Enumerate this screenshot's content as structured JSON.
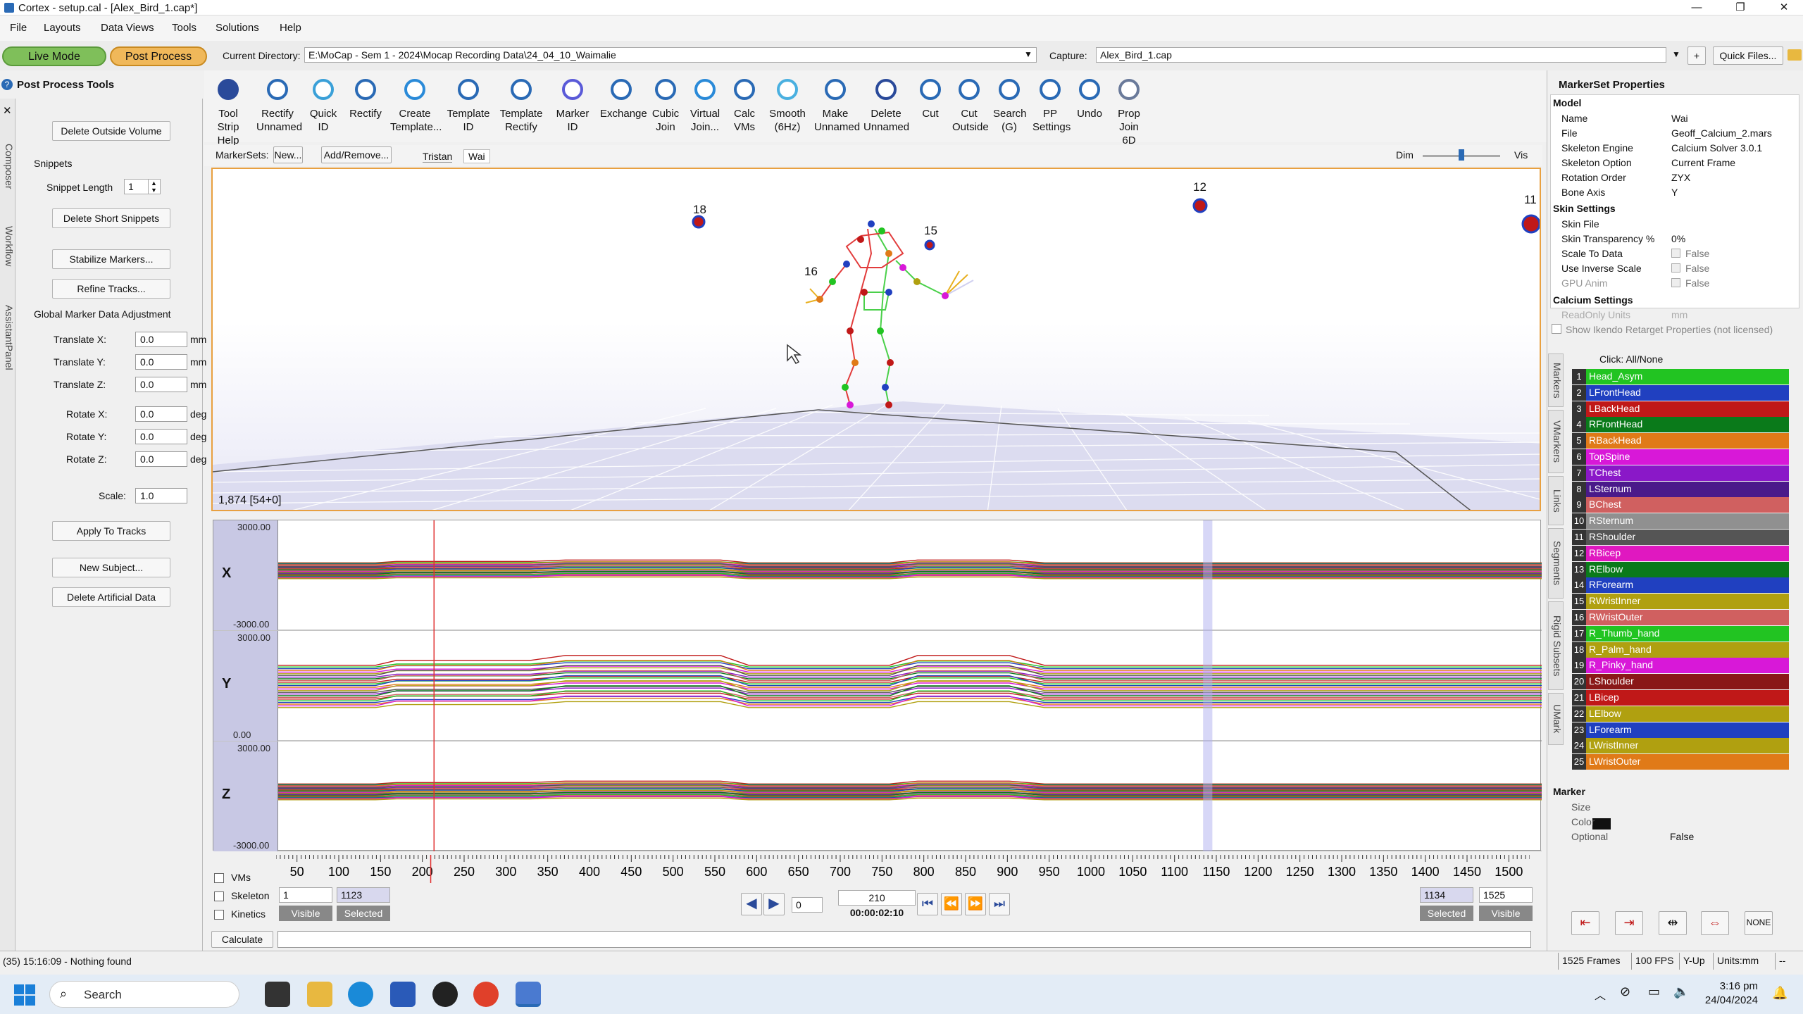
{
  "window": {
    "title": "Cortex - setup.cal - [Alex_Bird_1.cap*]",
    "min": "—",
    "max": "❐",
    "close": "✕"
  },
  "menu": [
    "File",
    "Layouts",
    "Data Views",
    "Tools",
    "Solutions",
    "Help"
  ],
  "modes": {
    "live": "Live Mode",
    "post": "Post Process"
  },
  "directory": {
    "label": "Current Directory:",
    "value": "E:\\MoCap - Sem 1 - 2024\\Mocap Recording Data\\24_04_10_Waimalie"
  },
  "capture": {
    "label": "Capture:",
    "value": "Alex_Bird_1.cap",
    "quick": "Quick Files..."
  },
  "left_panel": {
    "title": "Post Process Tools",
    "tabs": [
      "Composer",
      "Workflow",
      "AssistantPanel"
    ],
    "delete_outside": "Delete Outside Volume",
    "snippets_title": "Snippets",
    "snippet_length_label": "Snippet Length",
    "snippet_length": "1",
    "delete_short": "Delete Short Snippets",
    "stabilize": "Stabilize Markers...",
    "refine": "Refine Tracks...",
    "global_title": "Global Marker Data Adjustment",
    "adjust": [
      {
        "label": "Translate X:",
        "value": "0.0",
        "unit": "mm"
      },
      {
        "label": "Translate Y:",
        "value": "0.0",
        "unit": "mm"
      },
      {
        "label": "Translate Z:",
        "value": "0.0",
        "unit": "mm"
      },
      {
        "label": "Rotate X:",
        "value": "0.0",
        "unit": "deg"
      },
      {
        "label": "Rotate Y:",
        "value": "0.0",
        "unit": "deg"
      },
      {
        "label": "Rotate Z:",
        "value": "0.0",
        "unit": "deg"
      },
      {
        "label": "Scale:",
        "value": "1.0",
        "unit": ""
      }
    ],
    "apply": "Apply To Tracks",
    "new_subject": "New Subject...",
    "delete_artificial": "Delete Artificial Data"
  },
  "toolbar": [
    {
      "label": "Tool Strip\nHelp",
      "icon": "help-icon"
    },
    {
      "label": "Rectify\nUnnamed",
      "icon": "rectify-unnamed-icon"
    },
    {
      "label": "Quick ID",
      "icon": "quick-id-icon"
    },
    {
      "label": "Rectify",
      "icon": "rectify-icon"
    },
    {
      "label": "Create\nTemplate...",
      "icon": "create-template-icon"
    },
    {
      "label": "Template\nID",
      "icon": "template-id-icon"
    },
    {
      "label": "Template\nRectify",
      "icon": "template-rectify-icon"
    },
    {
      "label": "Marker ID",
      "icon": "marker-id-icon"
    },
    {
      "label": "Exchange",
      "icon": "exchange-icon"
    },
    {
      "label": "Cubic\nJoin",
      "icon": "cubic-join-icon"
    },
    {
      "label": "Virtual\nJoin...",
      "icon": "virtual-join-icon"
    },
    {
      "label": "Calc\nVMs",
      "icon": "calc-vms-icon"
    },
    {
      "label": "Smooth\n(6Hz)",
      "icon": "smooth-icon"
    },
    {
      "label": "Make\nUnnamed",
      "icon": "make-unnamed-icon"
    },
    {
      "label": "Delete\nUnnamed",
      "icon": "delete-unnamed-icon"
    },
    {
      "label": "Cut",
      "icon": "cut-icon"
    },
    {
      "label": "Cut\nOutside",
      "icon": "cut-outside-icon"
    },
    {
      "label": "Search\n(G)",
      "icon": "search-icon"
    },
    {
      "label": "PP\nSettings",
      "icon": "pp-settings-icon"
    },
    {
      "label": "Undo",
      "icon": "undo-icon"
    },
    {
      "label": "Prop\nJoin 6D",
      "icon": "prop-join-icon"
    }
  ],
  "subbar": {
    "markersets_label": "MarkerSets:",
    "new": "New...",
    "addremove": "Add/Remove...",
    "tab1": "Tristan",
    "tab2": "Wai",
    "dim": "Dim",
    "vis": "Vis",
    "dim_level": 0.5
  },
  "viewport": {
    "frame_readout": "1,874 [54+0]",
    "labels": [
      {
        "text": "18"
      },
      {
        "text": "15"
      },
      {
        "text": "16"
      },
      {
        "text": "12"
      },
      {
        "text": "11"
      }
    ]
  },
  "graphs": [
    {
      "axis": "X",
      "max": "3000.00",
      "min": "-3000.00"
    },
    {
      "axis": "Y",
      "max": "3000.00",
      "min": "0.00"
    },
    {
      "axis": "Z",
      "max": "3000.00",
      "min": "-3000.00"
    }
  ],
  "timeline": {
    "ticks": [
      "50",
      "100",
      "150",
      "200",
      "250",
      "300",
      "350",
      "400",
      "450",
      "500",
      "550",
      "600",
      "650",
      "700",
      "750",
      "800",
      "850",
      "900",
      "950",
      "1000",
      "1050",
      "1100",
      "1150",
      "1200",
      "1250",
      "1300",
      "1350",
      "1400",
      "1450",
      "1500"
    ],
    "cursor_frame": 210,
    "span": [
      25,
      1525
    ]
  },
  "transport": {
    "checks": [
      "VMs",
      "Skeleton",
      "Kinetics"
    ],
    "start_frame": "1",
    "start_sel": "1123",
    "visible": "Visible",
    "selected": "Selected",
    "step": "0",
    "current_frame": "210",
    "time": "00:00:02:10",
    "end_sel": "1134",
    "end_frame": "1525"
  },
  "calculate": "Calculate",
  "right_panel": {
    "title": "MarkerSet Properties",
    "model_section": "Model",
    "model": [
      {
        "k": "Name",
        "v": "Wai"
      },
      {
        "k": "File",
        "v": "Geoff_Calcium_2.mars"
      },
      {
        "k": "Skeleton Engine",
        "v": "Calcium Solver 3.0.1"
      },
      {
        "k": "Skeleton Option",
        "v": "Current Frame"
      },
      {
        "k": "Rotation Order",
        "v": "ZYX"
      },
      {
        "k": "Bone Axis",
        "v": "Y"
      }
    ],
    "skin_section": "Skin Settings",
    "skin": [
      {
        "k": "Skin File",
        "v": ""
      },
      {
        "k": "Skin Transparency %",
        "v": "0%"
      },
      {
        "k": "Scale To Data",
        "v": "False"
      },
      {
        "k": "Use Inverse Scale",
        "v": "False"
      },
      {
        "k": "GPU Anim",
        "v": "False"
      }
    ],
    "calcium_section": "Calcium Settings",
    "calcium_row": {
      "k": "ReadOnly Units",
      "v": "mm"
    },
    "ikendo": "Show Ikendo Retarget Properties (not licensed)",
    "tabs": [
      "Markers",
      "VMarkers",
      "Links",
      "Segments",
      "Rigid Subsets",
      "UMark"
    ],
    "click_all": "Click: All/None",
    "markers": [
      {
        "n": "1",
        "name": "Head_Asym",
        "color": "#22c422"
      },
      {
        "n": "2",
        "name": "LFrontHead",
        "color": "#2040c0"
      },
      {
        "n": "3",
        "name": "LBackHead",
        "color": "#c01818"
      },
      {
        "n": "4",
        "name": "RFrontHead",
        "color": "#0a7a1a"
      },
      {
        "n": "5",
        "name": "RBackHead",
        "color": "#e07a18"
      },
      {
        "n": "6",
        "name": "TopSpine",
        "color": "#d818d8"
      },
      {
        "n": "7",
        "name": "TChest",
        "color": "#8a18c8"
      },
      {
        "n": "8",
        "name": "LSternum",
        "color": "#4a1a8a"
      },
      {
        "n": "9",
        "name": "BChest",
        "color": "#d06060"
      },
      {
        "n": "10",
        "name": "RSternum",
        "color": "#909090"
      },
      {
        "n": "11",
        "name": "RShoulder",
        "color": "#555555"
      },
      {
        "n": "12",
        "name": "RBicep",
        "color": "#e018c0"
      },
      {
        "n": "13",
        "name": "RElbow",
        "color": "#0a7a1a"
      },
      {
        "n": "14",
        "name": "RForearm",
        "color": "#2040c0"
      },
      {
        "n": "15",
        "name": "RWristInner",
        "color": "#b0a010"
      },
      {
        "n": "16",
        "name": "RWristOuter",
        "color": "#d06060"
      },
      {
        "n": "17",
        "name": "R_Thumb_hand",
        "color": "#22c422"
      },
      {
        "n": "18",
        "name": "R_Palm_hand",
        "color": "#b0a010"
      },
      {
        "n": "19",
        "name": "R_Pinky_hand",
        "color": "#d818d8"
      },
      {
        "n": "20",
        "name": "LShoulder",
        "color": "#8a1818"
      },
      {
        "n": "21",
        "name": "LBicep",
        "color": "#c01818"
      },
      {
        "n": "22",
        "name": "LElbow",
        "color": "#b0a010"
      },
      {
        "n": "23",
        "name": "LForearm",
        "color": "#2040c0"
      },
      {
        "n": "24",
        "name": "LWristInner",
        "color": "#b0a010"
      },
      {
        "n": "25",
        "name": "LWristOuter",
        "color": "#e07a18"
      }
    ],
    "marker_section": "Marker",
    "marker_props": [
      {
        "k": "Size",
        "v": ""
      },
      {
        "k": "Color",
        "v": ""
      },
      {
        "k": "Optional",
        "v": "False"
      }
    ],
    "none_btn": "NONE"
  },
  "status": {
    "message": "(35) 15:16:09 - Nothing found",
    "frames": "1525 Frames",
    "fps": "100 FPS",
    "yup": "Y-Up",
    "units": "Units:mm",
    "extra": "--"
  },
  "taskbar": {
    "search": "Search",
    "time": "3:16 pm",
    "date": "24/04/2024"
  }
}
